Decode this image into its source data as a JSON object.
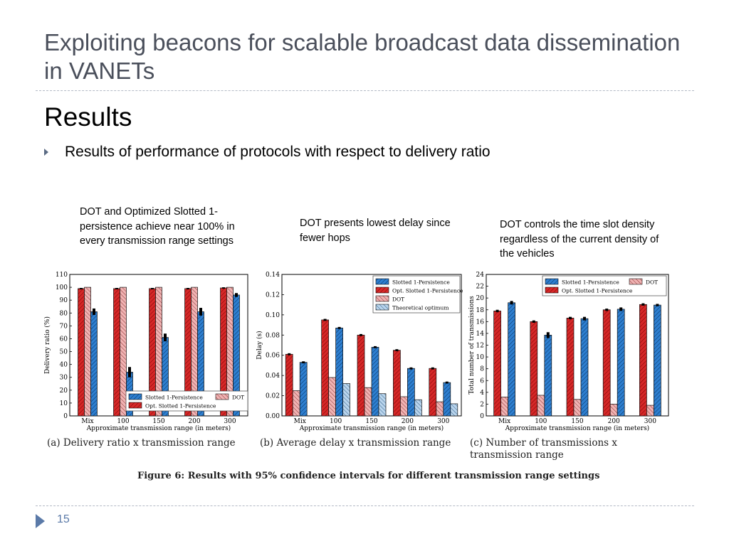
{
  "slide": {
    "title": "Exploiting beacons for scalable broadcast data dissemination in VANETs",
    "heading": "Results",
    "bullet": "Results of performance of protocols with respect to delivery ratio",
    "notes": [
      "DOT and Optimized Slotted 1-persistence achieve near 100% in every transmission range settings",
      "DOT presents lowest delay since fewer hops",
      "DOT controls the time slot density regardless of the current density of the vehicles"
    ],
    "figure_caption": "Figure 6: Results with 95% confidence intervals for different transmission range settings",
    "page_number": "15"
  },
  "colors": {
    "slotted": "#2e7fd0",
    "opt": "#d52828",
    "dot": "#f0b3b3",
    "theo": "#b9d4ec",
    "title": "#4a4f5b",
    "accent": "#5b7aa8"
  },
  "chart_data": [
    {
      "type": "bar",
      "caption": "(a) Delivery ratio x transmission range",
      "xlabel": "Approximate transmission range (in meters)",
      "ylabel": "Delivery ratio (%)",
      "categories": [
        "Mix",
        "100",
        "150",
        "200",
        "300"
      ],
      "ylim": [
        0,
        110
      ],
      "yticks": [
        0,
        10,
        20,
        30,
        40,
        50,
        60,
        70,
        80,
        90,
        100,
        110
      ],
      "legend_position": "bottom-right",
      "series": [
        {
          "name": "Opt. Slotted 1-Persistence",
          "key": "opt",
          "values": [
            99,
            99,
            99,
            99,
            99.5
          ],
          "errors": [
            0.5,
            0.5,
            0.5,
            0.5,
            0.5
          ]
        },
        {
          "name": "DOT",
          "key": "dot",
          "values": [
            100,
            100,
            100,
            100,
            100
          ],
          "errors": [
            0,
            0,
            0,
            0,
            0
          ]
        },
        {
          "name": "Slotted 1-Persistence",
          "key": "slotted",
          "values": [
            81,
            34,
            61,
            81,
            94
          ],
          "errors": [
            2.5,
            4,
            3,
            3,
            1.5
          ]
        }
      ]
    },
    {
      "type": "bar",
      "caption": "(b) Average delay x transmission range",
      "xlabel": "Approximate transmission range (in meters)",
      "ylabel": "Delay (s)",
      "categories": [
        "Mix",
        "100",
        "150",
        "200",
        "300"
      ],
      "ylim": [
        0,
        0.14
      ],
      "yticks": [
        "0.00",
        "0.02",
        "0.04",
        "0.06",
        "0.08",
        "0.10",
        "0.12",
        "0.14"
      ],
      "legend_position": "top-right",
      "series": [
        {
          "name": "Opt. Slotted 1-Persistence",
          "key": "opt",
          "values": [
            0.061,
            0.095,
            0.08,
            0.065,
            0.047
          ],
          "errors": [
            0.001,
            0.001,
            0.001,
            0.001,
            0.001
          ]
        },
        {
          "name": "DOT",
          "key": "dot",
          "values": [
            0.025,
            0.038,
            0.028,
            0.019,
            0.014
          ],
          "errors": [
            0,
            0,
            0,
            0,
            0
          ]
        },
        {
          "name": "Slotted 1-Persistence",
          "key": "slotted",
          "values": [
            0.053,
            0.087,
            0.068,
            0.047,
            0.033
          ],
          "errors": [
            0.001,
            0.001,
            0.001,
            0.001,
            0.001
          ]
        },
        {
          "name": "Theoretical optimum",
          "key": "theo",
          "values": [
            0,
            0.032,
            0.022,
            0.016,
            0.012
          ],
          "errors": [
            0,
            0,
            0,
            0,
            0
          ]
        }
      ],
      "legend_order": [
        "Slotted 1-Persistence",
        "Opt. Slotted 1-Persistence",
        "DOT",
        "Theoretical optimum"
      ]
    },
    {
      "type": "bar",
      "caption": "(c) Number of transmissions x transmission range",
      "xlabel": "Approximate transmission range (in meters)",
      "ylabel": "Total number of transmissions",
      "categories": [
        "Mix",
        "100",
        "150",
        "200",
        "300"
      ],
      "ylim": [
        0,
        24
      ],
      "yticks": [
        0,
        2,
        4,
        6,
        8,
        10,
        12,
        14,
        16,
        18,
        20,
        22,
        24
      ],
      "legend_position": "top-right",
      "series": [
        {
          "name": "Opt. Slotted 1-Persistence",
          "key": "opt",
          "values": [
            17.8,
            16,
            16.6,
            18,
            18.9
          ],
          "errors": [
            0.2,
            0.2,
            0.2,
            0.2,
            0.2
          ]
        },
        {
          "name": "DOT",
          "key": "dot",
          "values": [
            3.2,
            3.5,
            2.8,
            2,
            1.8
          ],
          "errors": [
            0,
            0,
            0,
            0,
            0
          ]
        },
        {
          "name": "Slotted 1-Persistence",
          "key": "slotted",
          "values": [
            19.2,
            13.7,
            16.5,
            18.1,
            18.8
          ],
          "errors": [
            0.3,
            0.5,
            0.3,
            0.3,
            0.2
          ]
        }
      ],
      "legend_order": [
        "Slotted 1-Persistence",
        "DOT",
        "Opt. Slotted 1-Persistence"
      ]
    }
  ]
}
